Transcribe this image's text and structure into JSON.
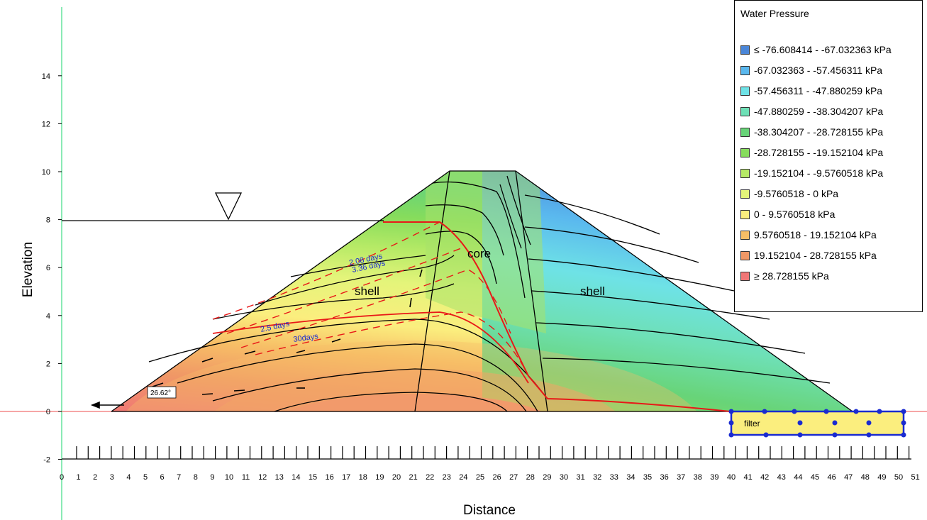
{
  "axes": {
    "x_title": "Distance",
    "y_title": "Elevation",
    "x_ticks": [
      "0",
      "1",
      "2",
      "3",
      "4",
      "5",
      "6",
      "7",
      "8",
      "9",
      "10",
      "11",
      "12",
      "13",
      "14",
      "15",
      "16",
      "17",
      "18",
      "19",
      "20",
      "21",
      "22",
      "23",
      "24",
      "25",
      "26",
      "27",
      "28",
      "29",
      "30",
      "31",
      "32",
      "33",
      "34",
      "35",
      "36",
      "37",
      "38",
      "39",
      "40",
      "41",
      "42",
      "43",
      "44",
      "45",
      "46",
      "47",
      "48",
      "49",
      "50",
      "51"
    ],
    "y_ticks": [
      "-2",
      "0",
      "2",
      "4",
      "6",
      "8",
      "10",
      "12",
      "14"
    ]
  },
  "regions": {
    "shell_left": "shell",
    "core": "core",
    "shell_right": "shell",
    "filter": "filter"
  },
  "angle_label": "26.62°",
  "time_labels": [
    "2.08 days",
    "3.36 days",
    "2.5 days",
    "30days"
  ],
  "legend": {
    "title": "Water Pressure",
    "items": [
      {
        "label": "≤ -76.608414 - -67.032363 kPa",
        "color": "#4a86d8"
      },
      {
        "label": "-67.032363 - -57.456311 kPa",
        "color": "#5ab8ee"
      },
      {
        "label": "-57.456311 - -47.880259 kPa",
        "color": "#6ee2e6"
      },
      {
        "label": "-47.880259 - -38.304207 kPa",
        "color": "#6ee0b6"
      },
      {
        "label": "-38.304207 - -28.728155 kPa",
        "color": "#68d478"
      },
      {
        "label": "-28.728155 - -19.152104 kPa",
        "color": "#86dc5c"
      },
      {
        "label": "-19.152104 - -9.5760518 kPa",
        "color": "#b6ea66"
      },
      {
        "label": "-9.5760518 - 0 kPa",
        "color": "#e4f47a"
      },
      {
        "label": "0 - 9.5760518 kPa",
        "color": "#fbee7e"
      },
      {
        "label": "9.5760518 - 19.152104 kPa",
        "color": "#f7be66"
      },
      {
        "label": "19.152104 - 28.728155 kPa",
        "color": "#f09866"
      },
      {
        "label": "≥ 28.728155 kPa",
        "color": "#f07676"
      }
    ]
  }
}
